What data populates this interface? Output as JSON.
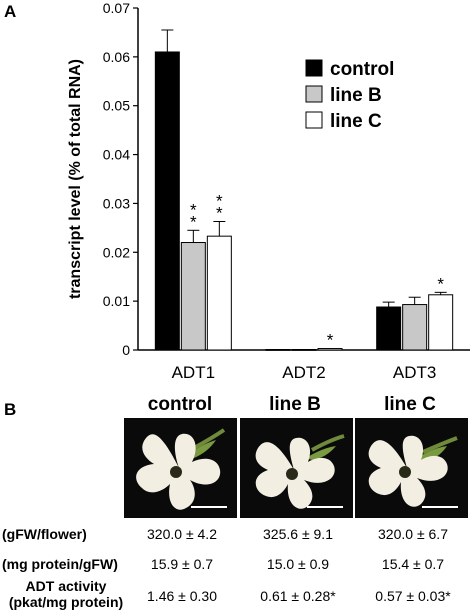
{
  "panels": {
    "a_label": "A",
    "b_label": "B"
  },
  "chart_data": {
    "type": "bar",
    "ylabel": "transcript level (% of total RNA)",
    "ylim": [
      0,
      0.07
    ],
    "yticks": [
      "0",
      "0.01",
      "0.02",
      "0.03",
      "0.04",
      "0.05",
      "0.06",
      "0.07"
    ],
    "categories": [
      "ADT1",
      "ADT2",
      "ADT3"
    ],
    "legend_position": "top-right",
    "series": [
      {
        "name": "control",
        "color": "#000000",
        "values": [
          0.061,
          0.0001,
          0.0088
        ],
        "errors": [
          0.0045,
          0,
          0.001
        ],
        "marks": [
          "",
          "",
          ""
        ]
      },
      {
        "name": "line B",
        "color": "#c8c8c8",
        "values": [
          0.022,
          0.0001,
          0.0093
        ],
        "errors": [
          0.0025,
          0,
          0.0015
        ],
        "marks": [
          "**",
          "",
          ""
        ]
      },
      {
        "name": "line C",
        "color": "#ffffff",
        "values": [
          0.0233,
          0.0003,
          0.0113
        ],
        "errors": [
          0.003,
          0,
          0.0005
        ],
        "marks": [
          "**",
          "*",
          "*"
        ]
      }
    ]
  },
  "panel_b": {
    "columns": [
      "control",
      "line B",
      "line C"
    ],
    "rows": [
      {
        "label": "(gFW/flower)",
        "values": [
          "320.0 ± 4.2",
          "325.6 ± 9.1",
          "320.0 ± 6.7"
        ]
      },
      {
        "label": "(mg protein/gFW)",
        "values": [
          "15.9 ± 0.7",
          "15.0 ± 0.9",
          "15.4 ± 0.7"
        ]
      },
      {
        "label_line1": "ADT activity",
        "label_line2": "(pkat/mg protein)",
        "values": [
          "1.46 ± 0.30",
          "0.61 ± 0.28*",
          "0.57 ± 0.03*"
        ]
      }
    ]
  }
}
